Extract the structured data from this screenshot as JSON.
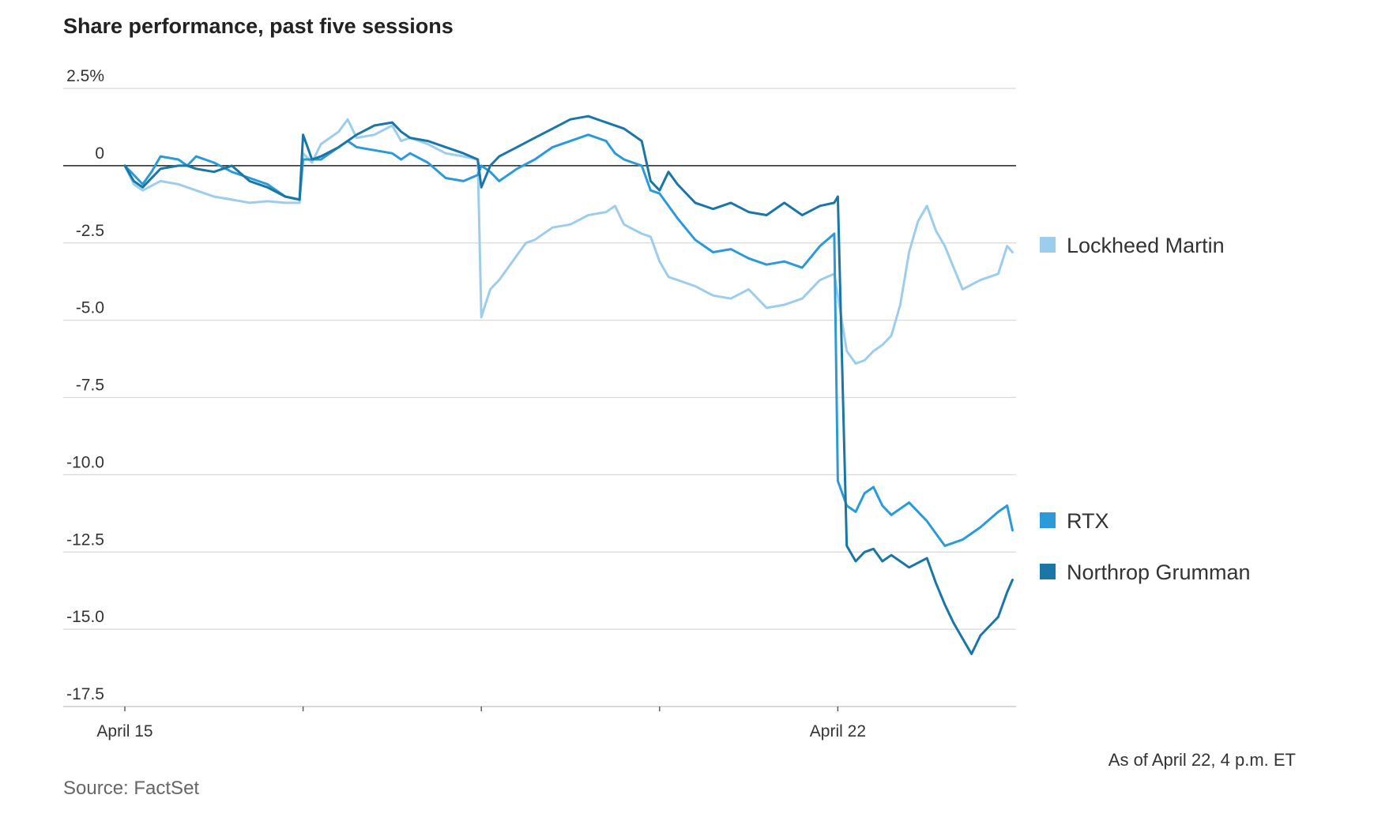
{
  "title": "Share performance, past five sessions",
  "note": "As of April 22, 4 p.m. ET",
  "source": "Source: FactSet",
  "colors": {
    "lockheed": "#9dcdec",
    "rtx": "#2a9ad8",
    "northrop": "#1a76a6",
    "zero_line": "#222222",
    "grid": "#d9d9d9"
  },
  "chart_data": {
    "type": "line",
    "title": "Share performance, past five sessions",
    "xlabel": "",
    "ylabel": "%",
    "ylim": [
      -17.5,
      2.5
    ],
    "yticks": [
      2.5,
      0,
      -2.5,
      -5.0,
      -7.5,
      -10.0,
      -12.5,
      -15.0,
      -17.5
    ],
    "ytick_labels": [
      "2.5%",
      "0",
      "-2.5",
      "-5.0",
      "-7.5",
      "-10.0",
      "-12.5",
      "-15.0",
      "-17.5"
    ],
    "xlim": [
      0,
      5
    ],
    "x_ticks": [
      0,
      1,
      2,
      3,
      4
    ],
    "x_tick_labels": [
      "April 15",
      "",
      "",
      "",
      "April 22"
    ],
    "series": [
      {
        "name": "Lockheed Martin",
        "key": "lockheed",
        "x": [
          0,
          0.05,
          0.1,
          0.2,
          0.3,
          0.35,
          0.4,
          0.5,
          0.6,
          0.7,
          0.8,
          0.9,
          0.98,
          1.0,
          1.05,
          1.1,
          1.2,
          1.25,
          1.3,
          1.4,
          1.5,
          1.55,
          1.6,
          1.7,
          1.8,
          1.9,
          1.98,
          2.0,
          2.05,
          2.1,
          2.15,
          2.2,
          2.25,
          2.3,
          2.4,
          2.5,
          2.6,
          2.7,
          2.75,
          2.8,
          2.9,
          2.95,
          3.0,
          3.05,
          3.1,
          3.2,
          3.3,
          3.4,
          3.5,
          3.6,
          3.7,
          3.8,
          3.9,
          3.98,
          4.0,
          4.05,
          4.1,
          4.15,
          4.2,
          4.25,
          4.3,
          4.35,
          4.4,
          4.45,
          4.5,
          4.55,
          4.6,
          4.65,
          4.7,
          4.8,
          4.9,
          4.95,
          4.98
        ],
        "y": [
          0,
          -0.6,
          -0.8,
          -0.5,
          -0.6,
          -0.7,
          -0.8,
          -1.0,
          -1.1,
          -1.2,
          -1.15,
          -1.2,
          -1.2,
          0.4,
          0.1,
          0.7,
          1.1,
          1.5,
          0.9,
          1.0,
          1.3,
          0.8,
          0.9,
          0.7,
          0.4,
          0.3,
          0.2,
          -4.9,
          -4.0,
          -3.7,
          -3.3,
          -2.9,
          -2.5,
          -2.4,
          -2.0,
          -1.9,
          -1.6,
          -1.5,
          -1.3,
          -1.9,
          -2.2,
          -2.3,
          -3.1,
          -3.6,
          -3.7,
          -3.9,
          -4.2,
          -4.3,
          -4.0,
          -4.6,
          -4.5,
          -4.3,
          -3.7,
          -3.5,
          -4.2,
          -6.0,
          -6.4,
          -6.3,
          -6.0,
          -5.8,
          -5.5,
          -4.5,
          -2.8,
          -1.8,
          -1.3,
          -2.1,
          -2.6,
          -3.3,
          -4.0,
          -3.7,
          -3.5,
          -2.6,
          -2.8
        ]
      },
      {
        "name": "RTX",
        "key": "rtx",
        "x": [
          0,
          0.05,
          0.1,
          0.15,
          0.2,
          0.3,
          0.35,
          0.4,
          0.5,
          0.6,
          0.7,
          0.8,
          0.9,
          0.98,
          1.0,
          1.1,
          1.2,
          1.25,
          1.3,
          1.4,
          1.5,
          1.55,
          1.6,
          1.7,
          1.8,
          1.9,
          1.98,
          2.0,
          2.05,
          2.1,
          2.15,
          2.2,
          2.3,
          2.4,
          2.5,
          2.6,
          2.7,
          2.75,
          2.8,
          2.9,
          2.95,
          3.0,
          3.1,
          3.2,
          3.3,
          3.4,
          3.5,
          3.6,
          3.7,
          3.8,
          3.9,
          3.98,
          4.0,
          4.05,
          4.1,
          4.15,
          4.2,
          4.25,
          4.3,
          4.35,
          4.4,
          4.5,
          4.6,
          4.7,
          4.8,
          4.9,
          4.95,
          4.98
        ],
        "y": [
          0,
          -0.3,
          -0.6,
          -0.2,
          0.3,
          0.2,
          0.0,
          0.3,
          0.1,
          -0.2,
          -0.4,
          -0.6,
          -1.0,
          -1.1,
          0.2,
          0.2,
          0.6,
          0.8,
          0.6,
          0.5,
          0.4,
          0.2,
          0.4,
          0.1,
          -0.4,
          -0.5,
          -0.3,
          0.0,
          -0.2,
          -0.5,
          -0.3,
          -0.1,
          0.2,
          0.6,
          0.8,
          1.0,
          0.8,
          0.4,
          0.2,
          0.0,
          -0.8,
          -0.9,
          -1.7,
          -2.4,
          -2.8,
          -2.7,
          -3.0,
          -3.2,
          -3.1,
          -3.3,
          -2.6,
          -2.2,
          -10.2,
          -11.0,
          -11.2,
          -10.6,
          -10.4,
          -11.0,
          -11.3,
          -11.1,
          -10.9,
          -11.5,
          -12.3,
          -12.1,
          -11.7,
          -11.2,
          -11.0,
          -11.8
        ]
      },
      {
        "name": "Northrop Grumman",
        "key": "northrop",
        "x": [
          0,
          0.05,
          0.1,
          0.2,
          0.3,
          0.35,
          0.4,
          0.5,
          0.6,
          0.7,
          0.8,
          0.9,
          0.98,
          1.0,
          1.05,
          1.1,
          1.2,
          1.3,
          1.4,
          1.5,
          1.55,
          1.6,
          1.7,
          1.8,
          1.9,
          1.98,
          2.0,
          2.05,
          2.1,
          2.2,
          2.3,
          2.4,
          2.5,
          2.6,
          2.7,
          2.8,
          2.9,
          2.95,
          3.0,
          3.05,
          3.1,
          3.2,
          3.3,
          3.4,
          3.5,
          3.6,
          3.7,
          3.8,
          3.9,
          3.98,
          4.0,
          4.05,
          4.1,
          4.15,
          4.2,
          4.25,
          4.3,
          4.35,
          4.4,
          4.5,
          4.55,
          4.6,
          4.65,
          4.7,
          4.75,
          4.8,
          4.9,
          4.95,
          4.98
        ],
        "y": [
          0,
          -0.5,
          -0.7,
          -0.1,
          0.0,
          0.0,
          -0.1,
          -0.2,
          0.0,
          -0.5,
          -0.7,
          -1.0,
          -1.1,
          1.0,
          0.2,
          0.3,
          0.6,
          1.0,
          1.3,
          1.4,
          1.1,
          0.9,
          0.8,
          0.6,
          0.4,
          0.2,
          -0.7,
          0.0,
          0.3,
          0.6,
          0.9,
          1.2,
          1.5,
          1.6,
          1.4,
          1.2,
          0.8,
          -0.5,
          -0.8,
          -0.2,
          -0.6,
          -1.2,
          -1.4,
          -1.2,
          -1.5,
          -1.6,
          -1.2,
          -1.6,
          -1.3,
          -1.2,
          -1.0,
          -12.3,
          -12.8,
          -12.5,
          -12.4,
          -12.8,
          -12.6,
          -12.8,
          -13.0,
          -12.7,
          -13.5,
          -14.2,
          -14.8,
          -15.3,
          -15.8,
          -15.2,
          -14.6,
          -13.8,
          -13.4
        ]
      }
    ],
    "legend": [
      "Lockheed Martin",
      "RTX",
      "Northrop Grumman"
    ],
    "legend_placement": "right"
  }
}
